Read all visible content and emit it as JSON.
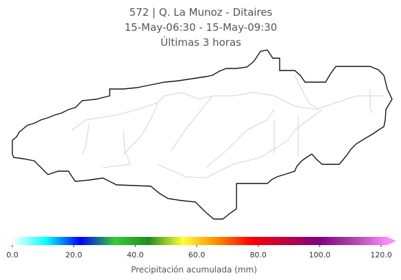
{
  "title_lines": [
    "572 | Q. La Munoz - Ditaires",
    "15-May-06:30 - 15-May-09:30",
    "Últimas 3 horas"
  ],
  "colorbar": {
    "label": "Precipitación acumulada (mm)",
    "lim": [
      0,
      122
    ],
    "colors": [
      "#ffffff",
      "#00ffff",
      "#0000ff",
      "#32cd32",
      "#228b22",
      "#ffff33",
      "#ff8c00",
      "#ff0000",
      "#c00040",
      "#800080",
      "#aa44aa",
      "#ff88ff"
    ],
    "ticks": [
      {
        "value": 0,
        "label": "0.0"
      },
      {
        "value": 20,
        "label": "20.0"
      },
      {
        "value": 40,
        "label": "40.0"
      },
      {
        "value": 60,
        "label": "60.0"
      },
      {
        "value": 80,
        "label": "80.0"
      },
      {
        "value": 100,
        "label": "100.0"
      },
      {
        "value": 120,
        "label": "120.0"
      }
    ]
  }
}
